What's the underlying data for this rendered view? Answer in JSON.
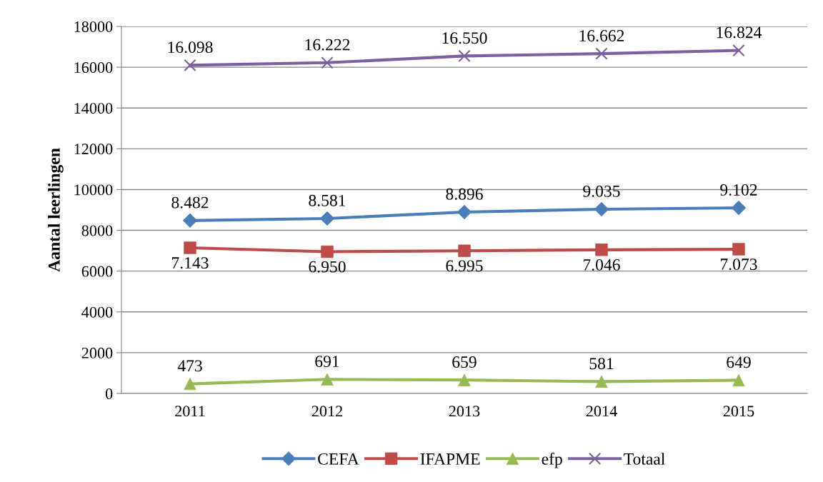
{
  "chart_data": {
    "type": "line",
    "ylabel": "Aantal leerlingen",
    "categories": [
      "2011",
      "2012",
      "2013",
      "2014",
      "2015"
    ],
    "series": [
      {
        "name": "CEFA",
        "color": "#4a7ebb",
        "marker": "diamond",
        "values": [
          8482,
          8581,
          8896,
          9035,
          9102
        ],
        "value_labels": [
          "8.482",
          "8.581",
          "8.896",
          "9.035",
          "9.102"
        ]
      },
      {
        "name": "IFAPME",
        "color": "#be4b48",
        "marker": "square",
        "values": [
          7143,
          6950,
          6995,
          7046,
          7073
        ],
        "value_labels": [
          "7.143",
          "6.950",
          "6.995",
          "7.046",
          "7.073"
        ]
      },
      {
        "name": "efp",
        "color": "#98b954",
        "marker": "triangle",
        "values": [
          473,
          691,
          659,
          581,
          649
        ],
        "value_labels": [
          "473",
          "691",
          "659",
          "581",
          "649"
        ]
      },
      {
        "name": "Totaal",
        "color": "#7d60a0",
        "marker": "cross",
        "values": [
          16098,
          16222,
          16550,
          16662,
          16824
        ],
        "value_labels": [
          "16.098",
          "16.222",
          "16.550",
          "16.662",
          "16.824"
        ]
      }
    ],
    "ylim": [
      0,
      18000
    ],
    "yticks": [
      0,
      2000,
      4000,
      6000,
      8000,
      10000,
      12000,
      14000,
      16000,
      18000
    ],
    "grid": "y",
    "legend": "bottom",
    "line_style": "solid"
  }
}
